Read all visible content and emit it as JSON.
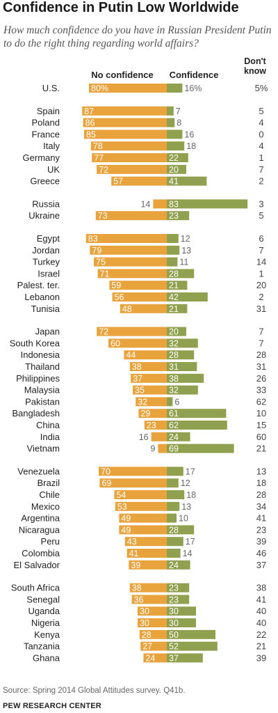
{
  "title": "Confidence in Putin Low Worldwide",
  "subtitle": "How much confidence do you have in Russian President Putin to do the right thing regarding world affairs?",
  "source": "Source: Spring 2014 Global Attitudes survey. Q41b.",
  "org": "PEW RESEARCH CENTER",
  "colors": {
    "no_confidence": "#E8A33D",
    "confidence": "#8FA04E"
  },
  "chart_data": {
    "type": "bar",
    "layout": "diverging-horizontal",
    "headers": {
      "no": "No confidence",
      "yes": "Confidence",
      "dk_line1": "Don't",
      "dk_line2": "know"
    },
    "groups": [
      {
        "rows": [
          {
            "country": "U.S.",
            "no": 80,
            "yes": 16,
            "dk": 5,
            "no_label": "80%",
            "yes_label": "16%",
            "dk_label": "5%"
          }
        ]
      },
      {
        "rows": [
          {
            "country": "Spain",
            "no": 87,
            "yes": 7,
            "dk": 5
          },
          {
            "country": "Poland",
            "no": 86,
            "yes": 8,
            "dk": 4
          },
          {
            "country": "France",
            "no": 85,
            "yes": 16,
            "dk": 0
          },
          {
            "country": "Italy",
            "no": 78,
            "yes": 18,
            "dk": 4
          },
          {
            "country": "Germany",
            "no": 77,
            "yes": 22,
            "dk": 1
          },
          {
            "country": "UK",
            "no": 72,
            "yes": 20,
            "dk": 7
          },
          {
            "country": "Greece",
            "no": 57,
            "yes": 41,
            "dk": 2
          }
        ]
      },
      {
        "rows": [
          {
            "country": "Russia",
            "no": 14,
            "yes": 83,
            "dk": 3
          },
          {
            "country": "Ukraine",
            "no": 73,
            "yes": 23,
            "dk": 5
          }
        ]
      },
      {
        "rows": [
          {
            "country": "Egypt",
            "no": 83,
            "yes": 12,
            "dk": 6
          },
          {
            "country": "Jordan",
            "no": 79,
            "yes": 13,
            "dk": 7
          },
          {
            "country": "Turkey",
            "no": 75,
            "yes": 11,
            "dk": 14
          },
          {
            "country": "Israel",
            "no": 71,
            "yes": 28,
            "dk": 1
          },
          {
            "country": "Palest. ter.",
            "no": 59,
            "yes": 21,
            "dk": 20
          },
          {
            "country": "Lebanon",
            "no": 56,
            "yes": 42,
            "dk": 2
          },
          {
            "country": "Tunisia",
            "no": 48,
            "yes": 21,
            "dk": 31
          }
        ]
      },
      {
        "rows": [
          {
            "country": "Japan",
            "no": 72,
            "yes": 20,
            "dk": 7
          },
          {
            "country": "South Korea",
            "no": 60,
            "yes": 32,
            "dk": 7
          },
          {
            "country": "Indonesia",
            "no": 44,
            "yes": 28,
            "dk": 28
          },
          {
            "country": "Thailand",
            "no": 38,
            "yes": 31,
            "dk": 31
          },
          {
            "country": "Philippines",
            "no": 37,
            "yes": 38,
            "dk": 26
          },
          {
            "country": "Malaysia",
            "no": 35,
            "yes": 32,
            "dk": 33
          },
          {
            "country": "Pakistan",
            "no": 32,
            "yes": 6,
            "dk": 62
          },
          {
            "country": "Bangladesh",
            "no": 29,
            "yes": 61,
            "dk": 10
          },
          {
            "country": "China",
            "no": 23,
            "yes": 62,
            "dk": 15
          },
          {
            "country": "India",
            "no": 16,
            "yes": 24,
            "dk": 60
          },
          {
            "country": "Vietnam",
            "no": 9,
            "yes": 69,
            "dk": 21
          }
        ]
      },
      {
        "rows": [
          {
            "country": "Venezuela",
            "no": 70,
            "yes": 17,
            "dk": 13
          },
          {
            "country": "Brazil",
            "no": 69,
            "yes": 12,
            "dk": 18
          },
          {
            "country": "Chile",
            "no": 54,
            "yes": 18,
            "dk": 28
          },
          {
            "country": "Mexico",
            "no": 53,
            "yes": 13,
            "dk": 34
          },
          {
            "country": "Argentina",
            "no": 49,
            "yes": 10,
            "dk": 41
          },
          {
            "country": "Nicaragua",
            "no": 49,
            "yes": 28,
            "dk": 23
          },
          {
            "country": "Peru",
            "no": 43,
            "yes": 17,
            "dk": 39
          },
          {
            "country": "Colombia",
            "no": 41,
            "yes": 14,
            "dk": 46
          },
          {
            "country": "El Salvador",
            "no": 39,
            "yes": 24,
            "dk": 37
          }
        ]
      },
      {
        "rows": [
          {
            "country": "South Africa",
            "no": 38,
            "yes": 23,
            "dk": 38
          },
          {
            "country": "Senegal",
            "no": 36,
            "yes": 23,
            "dk": 41
          },
          {
            "country": "Uganda",
            "no": 30,
            "yes": 30,
            "dk": 40
          },
          {
            "country": "Nigeria",
            "no": 30,
            "yes": 30,
            "dk": 40
          },
          {
            "country": "Kenya",
            "no": 28,
            "yes": 50,
            "dk": 22
          },
          {
            "country": "Tanzania",
            "no": 27,
            "yes": 52,
            "dk": 21
          },
          {
            "country": "Ghana",
            "no": 24,
            "yes": 37,
            "dk": 39
          }
        ]
      }
    ]
  }
}
